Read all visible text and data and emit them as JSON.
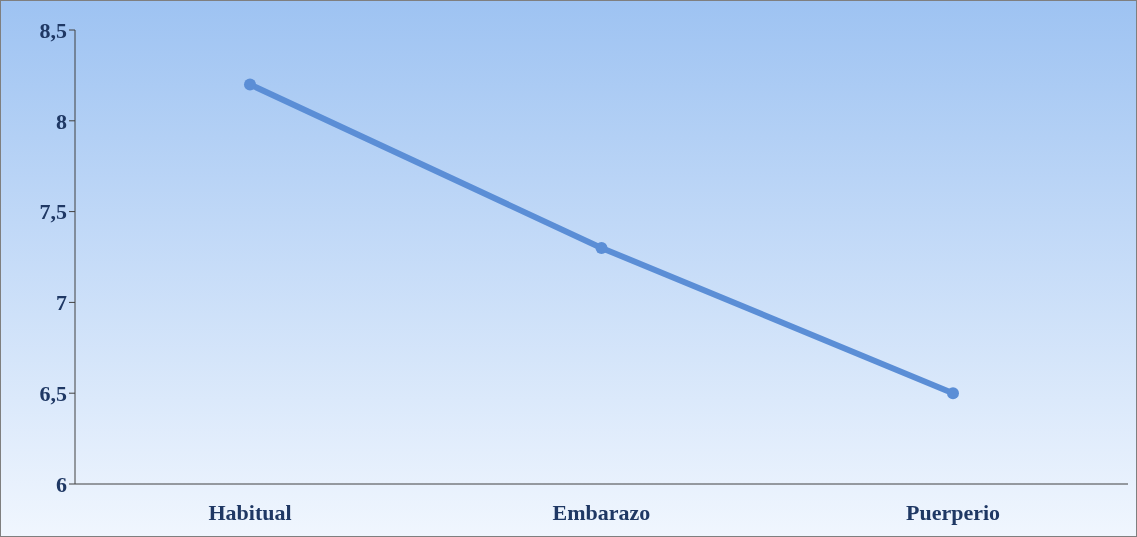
{
  "chart_data": {
    "type": "line",
    "categories": [
      "Habitual",
      "Embarazo",
      "Puerperio"
    ],
    "series": [
      {
        "color": "#5b8ed6",
        "values": [
          8.2,
          7.3,
          6.5
        ]
      }
    ],
    "ylim": [
      6,
      8.5
    ],
    "yticks": [
      6,
      {
        "value": 6.5,
        "label": "6,5"
      },
      7,
      {
        "value": 7.5,
        "label": "7,5"
      },
      8,
      {
        "value": 8.5,
        "label": "8,5"
      }
    ],
    "grid": false,
    "legend": false,
    "marker": "circle",
    "line_style": "solid"
  }
}
